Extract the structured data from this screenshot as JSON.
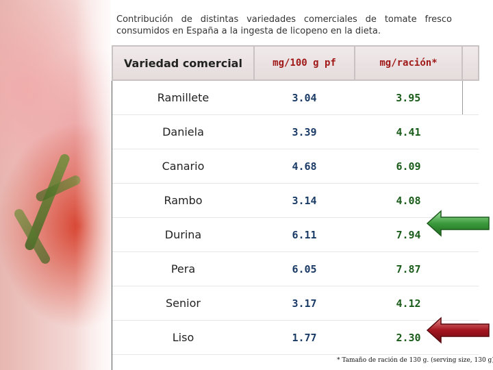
{
  "title": "Contribución de distintas variedades comerciales de tomate fresco consumidos en España a la ingesta de licopeno en la dieta.",
  "table": {
    "headers": [
      "Variedad comercial",
      "mg/100 g pf",
      "mg/ración*"
    ],
    "rows": [
      {
        "variety": "Ramillete",
        "per100": "3.04",
        "perServing": "3.95"
      },
      {
        "variety": "Daniela",
        "per100": "3.39",
        "perServing": "4.41"
      },
      {
        "variety": "Canario",
        "per100": "4.68",
        "perServing": "6.09"
      },
      {
        "variety": "Rambo",
        "per100": "3.14",
        "perServing": "4.08"
      },
      {
        "variety": "Durina",
        "per100": "6.11",
        "perServing": "7.94"
      },
      {
        "variety": "Pera",
        "per100": "6.05",
        "perServing": "7.87"
      },
      {
        "variety": "Senior",
        "per100": "3.17",
        "perServing": "4.12"
      },
      {
        "variety": "Liso",
        "per100": "1.77",
        "perServing": "2.30"
      }
    ]
  },
  "footnote": "* Tamaño de ración de 130 g. (serving size, 130 g)",
  "arrows": {
    "highest": {
      "row": "Durina",
      "color": "#3b9a3b",
      "icon": "left-arrow-icon"
    },
    "lowest": {
      "row": "Liso",
      "color": "#a3141e",
      "icon": "left-arrow-icon"
    }
  },
  "colors": {
    "headerUnits": "#a01818",
    "per100Values": "#1a3b66",
    "perServingValues": "#1a5c1a"
  }
}
